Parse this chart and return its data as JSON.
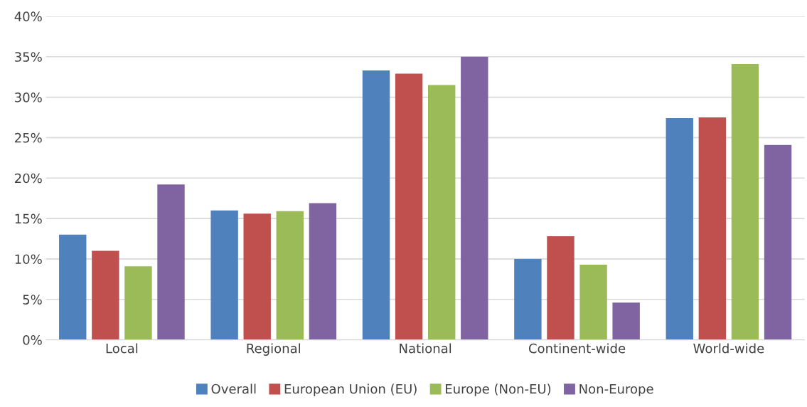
{
  "chart_data": {
    "type": "bar",
    "categories": [
      "Local",
      "Regional",
      "National",
      "Continent-wide",
      "World-wide"
    ],
    "series": [
      {
        "name": "Overall",
        "color": "#4f81bd",
        "values": [
          13.0,
          16.0,
          33.3,
          10.0,
          27.4
        ]
      },
      {
        "name": "European Union (EU)",
        "color": "#c0504d",
        "values": [
          11.0,
          15.6,
          32.9,
          12.8,
          27.5
        ]
      },
      {
        "name": "Europe (Non-EU)",
        "color": "#9bbb59",
        "values": [
          9.1,
          15.9,
          31.5,
          9.3,
          34.1
        ]
      },
      {
        "name": "Non-Europe",
        "color": "#8064a2",
        "values": [
          19.2,
          16.9,
          35.0,
          4.6,
          24.1
        ]
      }
    ],
    "ylim": [
      0,
      40
    ],
    "yticks": [
      {
        "value": 0,
        "label": "0%"
      },
      {
        "value": 5,
        "label": "5%"
      },
      {
        "value": 10,
        "label": "10%"
      },
      {
        "value": 15,
        "label": "15%"
      },
      {
        "value": 20,
        "label": "20%"
      },
      {
        "value": 25,
        "label": "25%"
      },
      {
        "value": 30,
        "label": "30%"
      },
      {
        "value": 35,
        "label": "35%"
      },
      {
        "value": 40,
        "label": "40%"
      }
    ],
    "grid": "y",
    "legend": "bottom"
  }
}
